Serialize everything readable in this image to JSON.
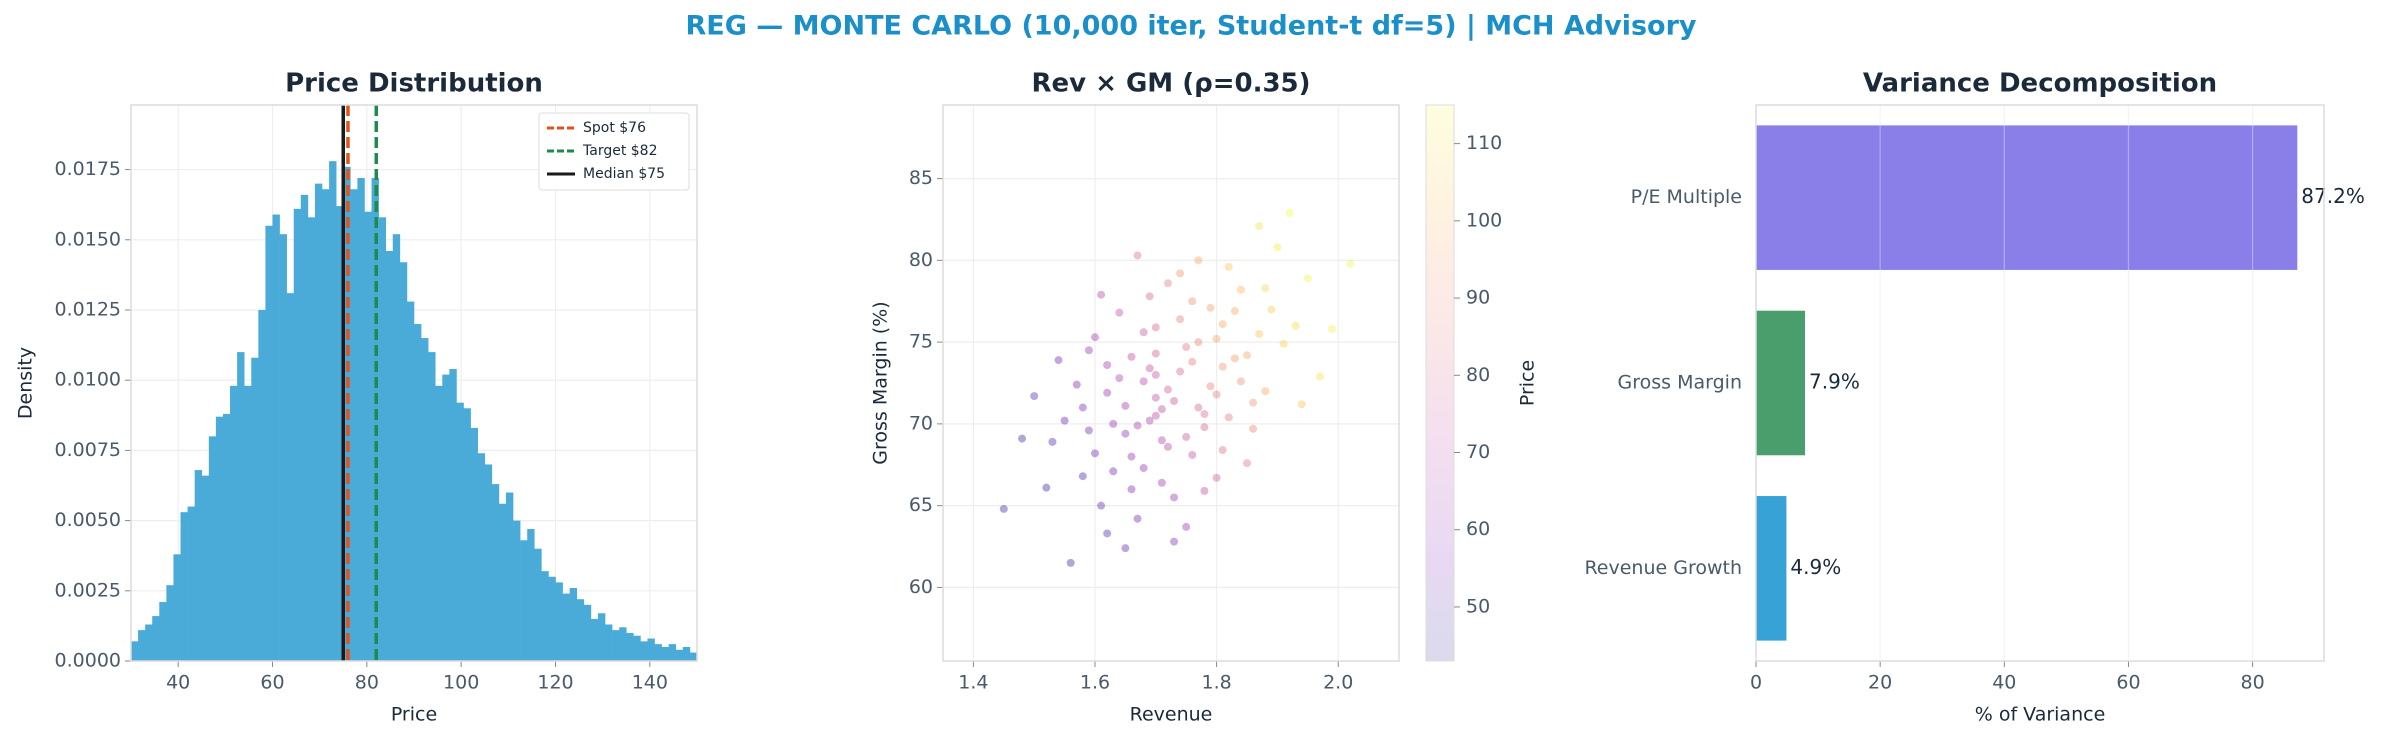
{
  "title": "REG — MONTE CARLO (10,000 iter, Student-t df=5) | MCH Advisory",
  "chart_data": [
    {
      "type": "histogram",
      "title": "Price Distribution",
      "xlabel": "Price",
      "ylabel": "Density",
      "color": "#4aabd8",
      "bins": [
        30,
        31.5,
        33,
        34.5,
        36,
        37.5,
        39,
        40.5,
        42,
        43.5,
        45,
        46.5,
        48,
        49.5,
        51,
        52.5,
        54,
        55.5,
        57,
        58.5,
        60,
        61.5,
        63,
        64.5,
        66,
        67.5,
        69,
        70.5,
        72,
        73.5,
        75,
        76.5,
        78,
        79.5,
        81,
        82.5,
        84,
        85.5,
        87,
        88.5,
        90,
        91.5,
        93,
        94.5,
        96,
        97.5,
        99,
        100.5,
        102,
        103.5,
        105,
        106.5,
        108,
        109.5,
        111,
        112.5,
        114,
        115.5,
        117,
        118.5,
        120,
        121.5,
        123,
        124.5,
        126,
        127.5,
        129,
        130.5,
        132,
        133.5,
        135,
        136.5,
        138,
        139.5,
        141,
        142.5,
        144,
        145.5,
        147,
        148.5,
        150
      ],
      "values": [
        0.0007,
        0.0011,
        0.0013,
        0.0016,
        0.0021,
        0.0027,
        0.0038,
        0.0053,
        0.0055,
        0.0068,
        0.0066,
        0.008,
        0.0087,
        0.0088,
        0.0098,
        0.011,
        0.0098,
        0.0108,
        0.0125,
        0.0155,
        0.0159,
        0.0152,
        0.0131,
        0.0161,
        0.0166,
        0.0158,
        0.017,
        0.0168,
        0.0178,
        0.0162,
        0.0176,
        0.0168,
        0.0172,
        0.016,
        0.0172,
        0.0158,
        0.0146,
        0.0152,
        0.0142,
        0.0128,
        0.012,
        0.0115,
        0.011,
        0.0098,
        0.0102,
        0.0104,
        0.0092,
        0.009,
        0.0083,
        0.0074,
        0.007,
        0.0063,
        0.0056,
        0.006,
        0.005,
        0.0043,
        0.0047,
        0.004,
        0.0032,
        0.003,
        0.0028,
        0.0024,
        0.0026,
        0.0022,
        0.002,
        0.0015,
        0.0017,
        0.0013,
        0.0011,
        0.0012,
        0.001,
        0.0009,
        0.0007,
        0.0008,
        0.0006,
        0.0005,
        0.0006,
        0.0004,
        0.0005,
        0.0003
      ],
      "lines": [
        {
          "value": 76,
          "label": "Spot $76",
          "color": "#e0531b",
          "dash": true
        },
        {
          "value": 82,
          "label": "Target $82",
          "color": "#1e8a4c",
          "dash": true
        },
        {
          "value": 75,
          "label": "Median $75",
          "color": "#1a1a1a",
          "dash": false
        }
      ],
      "legend": "upper right",
      "grid": true,
      "xlim": [
        30,
        150
      ],
      "xticks": [
        40,
        60,
        80,
        100,
        120,
        140
      ],
      "ylim": [
        0,
        0.0198
      ],
      "yticks": [
        {
          "value": 0,
          "label": "0.0000"
        },
        0.0025,
        {
          "value": 0.005,
          "label": "0.0050"
        },
        0.0075,
        {
          "value": 0.01,
          "label": "0.0100"
        },
        0.0125,
        {
          "value": 0.015,
          "label": "0.0150"
        },
        0.0175
      ]
    },
    {
      "type": "scatter",
      "title": "Rev × GM (ρ=0.35)",
      "xlabel": "Revenue",
      "ylabel": "Gross Margin (%)",
      "grid": true,
      "x": [
        1.72,
        1.65,
        1.8,
        1.58,
        1.88,
        1.7,
        1.76,
        1.62,
        1.84,
        1.68,
        1.74,
        1.55,
        1.91,
        1.78,
        1.66,
        1.73,
        1.82,
        1.6,
        1.7,
        1.86,
        1.69,
        1.77,
        1.64,
        1.81,
        1.71,
        1.59,
        1.95,
        1.67,
        1.75,
        1.83,
        1.63,
        1.79,
        1.52,
        1.9,
        1.72,
        1.68,
        1.85,
        1.61,
        1.74,
        1.57,
        1.8,
        1.7,
        1.88,
        1.66,
        1.76,
        1.48,
        1.93,
        1.73,
        1.64,
        1.82,
        1.69,
        1.78,
        1.54,
        1.87,
        1.71,
        1.65,
        1.97,
        1.62,
        1.77,
        1.84,
        1.59,
        1.75,
        1.67,
        1.81,
        1.45,
        2.02,
        1.7,
        1.63,
        1.79,
        1.73,
        1.56,
        1.86,
        1.68,
        1.92,
        1.6,
        1.76,
        1.83,
        1.66,
        1.74,
        1.89,
        1.58,
        1.8,
        1.72,
        1.65,
        1.85,
        1.69,
        1.99,
        1.53,
        1.77,
        1.71,
        1.62,
        1.81,
        1.75,
        1.67,
        1.87,
        1.61,
        1.78,
        1.5,
        1.94,
        1.7
      ],
      "y": [
        72.1,
        69.4,
        75.2,
        66.8,
        78.3,
        70.5,
        73.8,
        71.9,
        72.6,
        67.3,
        76.4,
        70.2,
        74.9,
        69.8,
        74.1,
        65.5,
        79.6,
        68.2,
        73.0,
        71.3,
        77.8,
        71.0,
        72.8,
        68.4,
        69.0,
        74.5,
        78.9,
        64.2,
        74.7,
        76.9,
        70.0,
        72.3,
        66.1,
        80.8,
        68.6,
        75.6,
        74.2,
        65.0,
        79.2,
        72.4,
        66.7,
        71.6,
        72.0,
        68.0,
        77.5,
        69.1,
        76.0,
        62.8,
        76.8,
        70.4,
        73.4,
        65.9,
        73.9,
        82.1,
        70.9,
        71.1,
        72.9,
        63.3,
        75.0,
        78.2,
        69.6,
        69.2,
        80.3,
        73.5,
        64.8,
        79.8,
        75.9,
        67.1,
        77.1,
        71.4,
        61.5,
        69.7,
        72.6,
        82.9,
        75.3,
        68.1,
        74.0,
        66.0,
        73.2,
        77.0,
        71.0,
        71.8,
        78.6,
        62.4,
        67.6,
        70.2,
        75.8,
        68.9,
        80.0,
        66.4,
        73.6,
        76.1,
        63.7,
        69.9,
        75.5,
        77.9,
        70.6,
        71.7,
        71.2,
        74.3
      ],
      "c": [
        76,
        60,
        96,
        48,
        108,
        70,
        86,
        63,
        91,
        61,
        87,
        52,
        106,
        79,
        71,
        63,
        104,
        54,
        74,
        92,
        80,
        79,
        67,
        83,
        68,
        62,
        114,
        55,
        85,
        98,
        60,
        87,
        44,
        112,
        70,
        75,
        96,
        51,
        92,
        57,
        76,
        73,
        97,
        62,
        91,
        44,
        108,
        59,
        72,
        85,
        73,
        73,
        55,
        110,
        71,
        64,
        110,
        50,
        88,
        101,
        55,
        75,
        83,
        92,
        43,
        114,
        79,
        56,
        95,
        75,
        45,
        88,
        70,
        115,
        64,
        73,
        94,
        58,
        80,
        105,
        57,
        86,
        86,
        52,
        84,
        67,
        113,
        49,
        97,
        64,
        65,
        97,
        63,
        65,
        103,
        70,
        81,
        50,
        103,
        77
      ],
      "xlim": [
        1.35,
        2.1
      ],
      "xticks": [
        1.4,
        1.6,
        1.8,
        {
          "value": 2,
          "label": "2.0"
        }
      ],
      "ylim": [
        55.5,
        89.5
      ],
      "yticks": [
        60,
        65,
        70,
        75,
        80,
        85
      ],
      "colorbar": {
        "label": "Price",
        "colormap": "plasma",
        "lim": [
          43,
          115
        ],
        "ticks": [
          50,
          60,
          70,
          80,
          90,
          100,
          110
        ]
      }
    },
    {
      "type": "barh",
      "title": "Variance Decomposition",
      "xlabel": "% of Variance",
      "grid": true,
      "categories": [
        "P/E Multiple",
        "Gross Margin",
        "Revenue Growth"
      ],
      "values": [
        87.2,
        7.9,
        4.9
      ],
      "value_labels": [
        "87.2%",
        "7.9%",
        "4.9%"
      ],
      "colors": [
        "#8a7fe9",
        "#4a9e6b",
        "#37a2d6"
      ],
      "xlim": [
        0,
        91.5
      ],
      "xticks": [
        0,
        20,
        40,
        60,
        80
      ]
    }
  ]
}
